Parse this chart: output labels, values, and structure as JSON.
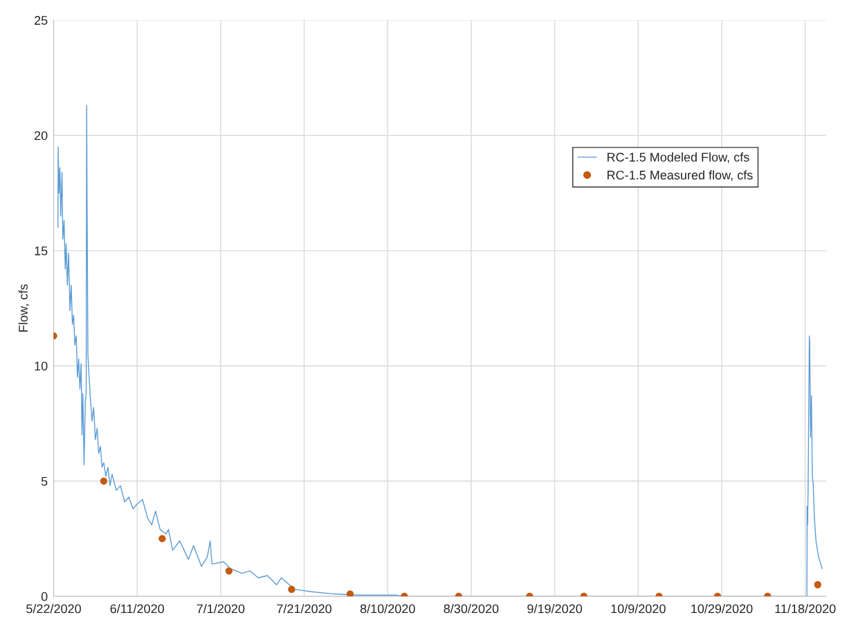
{
  "chart_data": {
    "type": "line",
    "ylabel": "Flow, cfs",
    "xlim": [
      "2020-05-22",
      "2020-11-23"
    ],
    "xticks": [
      {
        "value": "2020-05-22",
        "label": "5/22/2020"
      },
      {
        "value": "2020-06-11",
        "label": "6/11/2020"
      },
      {
        "value": "2020-07-01",
        "label": "7/1/2020"
      },
      {
        "value": "2020-07-21",
        "label": "7/21/2020"
      },
      {
        "value": "2020-08-10",
        "label": "8/10/2020"
      },
      {
        "value": "2020-08-30",
        "label": "8/30/2020"
      },
      {
        "value": "2020-09-19",
        "label": "9/19/2020"
      },
      {
        "value": "2020-10-09",
        "label": "10/9/2020"
      },
      {
        "value": "2020-10-29",
        "label": "10/29/2020"
      },
      {
        "value": "2020-11-18",
        "label": "11/18/2020"
      }
    ],
    "ylim": [
      0,
      25
    ],
    "yticks": [
      0,
      5,
      10,
      15,
      20,
      25
    ],
    "grid": true,
    "legend": "top right",
    "series": [
      {
        "name": "RC-1.5 Modeled Flow, cfs",
        "color": "#5b9bd5",
        "marker": "none",
        "line_style": "solid",
        "x": [
          "2020-05-23T01:00",
          "2020-05-23T02:00",
          "2020-05-23T07:00",
          "2020-05-23T12:00",
          "2020-05-23T17:00",
          "2020-05-24T00:00",
          "2020-05-24T05:00",
          "2020-05-24T12:00",
          "2020-05-24T19:00",
          "2020-05-25T00:00",
          "2020-05-25T07:00",
          "2020-05-25T14:00",
          "2020-05-25T22:00",
          "2020-05-26T05:00",
          "2020-05-26T12:00",
          "2020-05-26T19:00",
          "2020-05-27T02:00",
          "2020-05-27T10:00",
          "2020-05-27T17:00",
          "2020-05-28T00:00",
          "2020-05-28T07:00",
          "2020-05-28T14:00",
          "2020-05-28T19:00",
          "2020-05-29T00:00",
          "2020-05-29T07:00",
          "2020-05-29T14:00",
          "2020-05-29T19:00",
          "2020-05-29T22:00",
          "2020-05-30T00:00",
          "2020-05-30T05:00",
          "2020-05-30T12:00",
          "2020-05-30T19:00",
          "2020-05-31T05:00",
          "2020-05-31T14:00",
          "2020-06-01T00:00",
          "2020-06-01T10:00",
          "2020-06-01T19:00",
          "2020-06-02T05:00",
          "2020-06-02T14:00",
          "2020-06-03T00:00",
          "2020-06-03T12:00",
          "2020-06-04T00:00",
          "2020-06-04T12:00",
          "2020-06-05T00:00",
          "2020-06-06T00:00",
          "2020-06-07T00:00",
          "2020-06-08T00:00",
          "2020-06-09T00:00",
          "2020-06-10T00:00",
          "2020-06-11T00:00",
          "2020-06-12T07:00",
          "2020-06-13T12:00",
          "2020-06-14T12:00",
          "2020-06-15T10:00",
          "2020-06-16T12:00",
          "2020-06-17T22:00",
          "2020-06-18T12:00",
          "2020-06-19T12:00",
          "2020-06-21T05:00",
          "2020-06-23T07:00",
          "2020-06-24T12:00",
          "2020-06-26T10:00",
          "2020-06-27T19:00",
          "2020-06-28T12:00",
          "2020-06-28T22:00",
          "2020-07-01T17:00",
          "2020-07-03T07:00",
          "2020-07-06T02:00",
          "2020-07-08T00:00",
          "2020-07-10T00:00",
          "2020-07-12T05:00",
          "2020-07-14T10:00",
          "2020-07-15T12:00",
          "2020-07-18T19:00",
          "2020-07-22T17:00",
          "2020-07-28T05:00",
          "2020-08-03T07:00",
          "2020-08-12T00:00",
          "2020-08-14T00:00",
          "2020-11-18T10:00",
          "2020-11-18T11:00",
          "2020-11-18T14:00",
          "2020-11-18T17:00",
          "2020-11-19T00:00",
          "2020-11-19T02:00",
          "2020-11-19T07:00",
          "2020-11-19T12:00",
          "2020-11-19T17:00",
          "2020-11-19T22:00",
          "2020-11-20T05:00",
          "2020-11-20T14:00",
          "2020-11-21T05:00",
          "2020-11-22T02:00"
        ],
        "values": [
          16.0,
          19.5,
          17.5,
          18.6,
          16.5,
          18.4,
          15.5,
          16.3,
          14.2,
          15.3,
          13.5,
          14.9,
          12.4,
          13.5,
          11.8,
          12.2,
          10.9,
          11.3,
          9.5,
          10.3,
          9.0,
          10.1,
          7.0,
          8.8,
          5.7,
          8.5,
          8.8,
          21.3,
          17.5,
          10.5,
          9.5,
          8.6,
          7.6,
          8.2,
          6.8,
          7.3,
          6.2,
          6.5,
          5.6,
          5.8,
          5.2,
          5.6,
          4.8,
          5.3,
          4.6,
          4.8,
          4.1,
          4.3,
          3.8,
          4.0,
          4.2,
          3.4,
          3.1,
          3.7,
          2.9,
          2.7,
          2.9,
          2.0,
          2.4,
          1.6,
          2.2,
          1.3,
          1.7,
          2.4,
          1.4,
          1.5,
          1.2,
          1.0,
          1.1,
          0.8,
          0.9,
          0.5,
          0.8,
          0.3,
          0.2,
          0.1,
          0.05,
          0.05,
          0,
          0,
          3.9,
          3.1,
          4.9,
          11.3,
          11.0,
          6.9,
          8.7,
          5.2,
          4.9,
          3.4,
          2.4,
          1.7,
          1.2
        ]
      },
      {
        "name": "RC-1.5 Measured flow, cfs",
        "type": "scatter",
        "color": "#c55a11",
        "marker": "circle",
        "x": [
          "2020-05-22",
          "2020-06-03",
          "2020-06-17",
          "2020-07-03",
          "2020-07-18",
          "2020-08-01",
          "2020-08-14",
          "2020-08-27",
          "2020-09-13",
          "2020-09-26",
          "2020-10-14",
          "2020-10-28",
          "2020-11-09",
          "2020-11-21"
        ],
        "values": [
          11.3,
          5.0,
          2.5,
          1.1,
          0.3,
          0.1,
          0,
          0,
          0,
          0,
          0,
          0,
          0,
          0.5
        ]
      }
    ]
  }
}
